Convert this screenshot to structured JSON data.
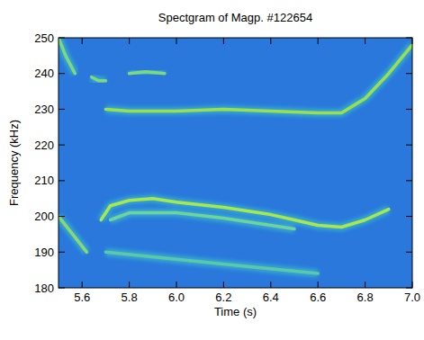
{
  "chart_data": {
    "type": "spectrogram",
    "title": "Spectgram of Magp. #122654",
    "x_label": "Time (s)",
    "y_label": "Frequency (kHz)",
    "xlim": [
      5.5,
      7.0
    ],
    "ylim": [
      180,
      250
    ],
    "xticks": [
      5.6,
      5.8,
      {
        "value": 6.0,
        "label": "6.0"
      },
      6.2,
      6.4,
      6.6,
      6.8,
      {
        "value": 7.0,
        "label": "7.0"
      }
    ],
    "yticks": [
      180,
      190,
      200,
      210,
      220,
      230,
      240,
      250
    ],
    "color": "#2a78dc",
    "series": [
      {
        "color": "#9be04a",
        "x": [
          5.7,
          5.8,
          6.0,
          6.2,
          6.4,
          6.6,
          6.7,
          6.8,
          6.9,
          7.0
        ],
        "values": [
          230,
          229.5,
          229.5,
          230,
          229.5,
          229,
          229,
          233,
          240,
          248
        ]
      },
      {
        "color": "#a8e84a",
        "x": [
          5.68,
          5.72,
          5.8,
          5.9,
          6.0,
          6.2,
          6.4,
          6.5,
          6.6,
          6.7,
          6.8,
          6.9
        ],
        "values": [
          199,
          203,
          204.5,
          205,
          204,
          202.5,
          200.5,
          199,
          197.5,
          197,
          199,
          202
        ]
      },
      {
        "color": "#6fd39a",
        "x": [
          5.72,
          5.8,
          6.0,
          6.2,
          6.4,
          6.5
        ],
        "values": [
          199,
          201,
          201,
          199.5,
          197.5,
          196.5
        ]
      },
      {
        "color": "#7fd87a",
        "x": [
          5.8,
          5.87,
          5.95
        ],
        "values": [
          240,
          240.5,
          240
        ]
      },
      {
        "color": "#7fd87a",
        "x": [
          5.5,
          5.53,
          5.57
        ],
        "values": [
          250,
          245,
          240
        ]
      },
      {
        "color": "#7fd87a",
        "x": [
          5.64,
          5.67,
          5.7
        ],
        "values": [
          239,
          238,
          238
        ]
      },
      {
        "color": "#8ad870",
        "x": [
          5.5,
          5.56,
          5.62
        ],
        "values": [
          200,
          195,
          190
        ]
      },
      {
        "color": "#5cc8a8",
        "x": [
          5.7,
          6.0,
          6.3,
          6.6
        ],
        "values": [
          190,
          188,
          186,
          184
        ]
      }
    ]
  }
}
